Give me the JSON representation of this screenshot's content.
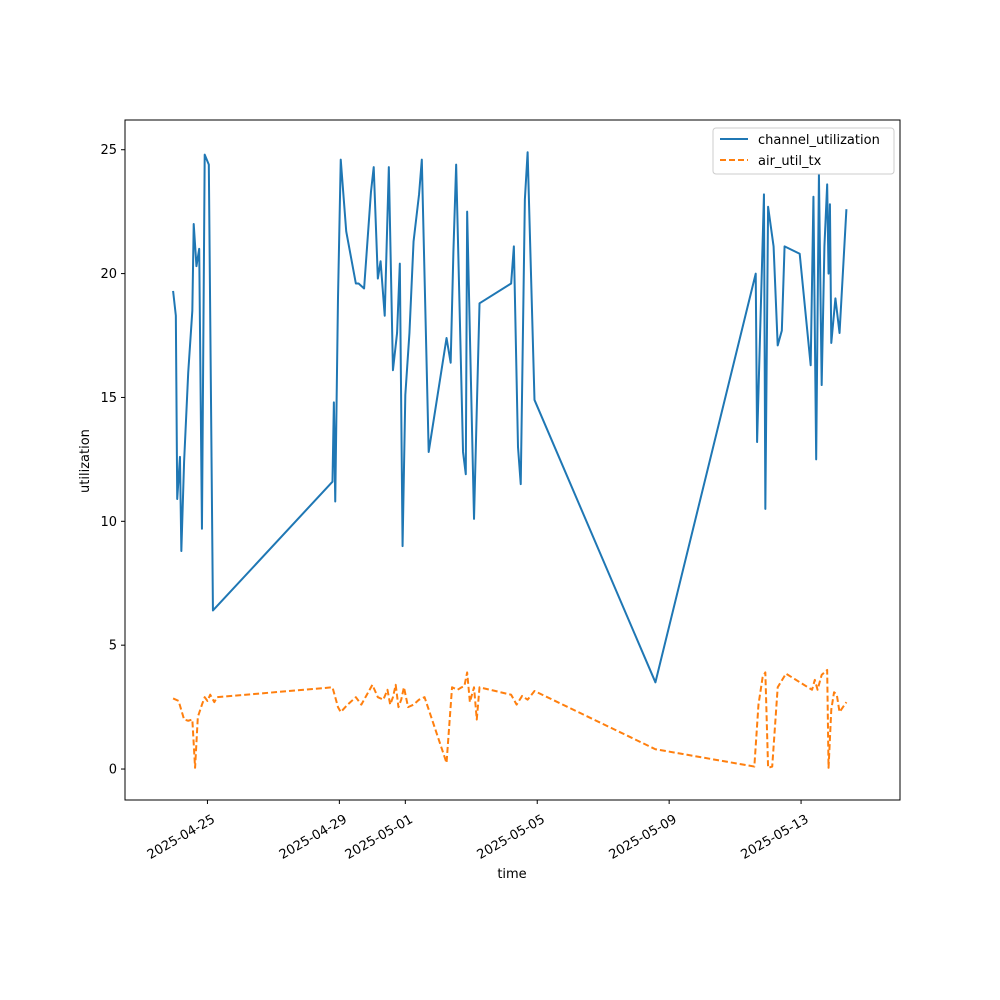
{
  "chart_data": {
    "type": "line",
    "xlabel": "time",
    "ylabel": "utilization",
    "xlim": [
      "2025-04-22T12:00",
      "2025-05-16T00:00"
    ],
    "ylim": [
      -1.25,
      26.2
    ],
    "x_ticks": [
      "2025-04-25",
      "2025-04-29",
      "2025-05-01",
      "2025-05-05",
      "2025-05-09",
      "2025-05-13"
    ],
    "y_ticks": [
      0,
      5,
      10,
      15,
      20,
      25
    ],
    "grid": false,
    "legend_position": "top-right",
    "series": [
      {
        "name": "channel_utilization",
        "color": "#1f77b4",
        "style": "solid",
        "points": [
          [
            "2025-04-23T23:00",
            19.3
          ],
          [
            "2025-04-24T01:00",
            18.3
          ],
          [
            "2025-04-24T02:00",
            10.9
          ],
          [
            "2025-04-24T04:00",
            12.6
          ],
          [
            "2025-04-24T05:00",
            8.8
          ],
          [
            "2025-04-24T07:00",
            12.4
          ],
          [
            "2025-04-24T10:00",
            16.0
          ],
          [
            "2025-04-24T13:00",
            18.5
          ],
          [
            "2025-04-24T14:00",
            22.0
          ],
          [
            "2025-04-24T16:00",
            20.3
          ],
          [
            "2025-04-24T18:00",
            21.0
          ],
          [
            "2025-04-24T20:00",
            9.7
          ],
          [
            "2025-04-24T22:00",
            24.8
          ],
          [
            "2025-04-25T01:00",
            24.4
          ],
          [
            "2025-04-25T04:00",
            6.4
          ],
          [
            "2025-04-28T19:00",
            11.6
          ],
          [
            "2025-04-28T20:00",
            14.8
          ],
          [
            "2025-04-28T21:00",
            10.8
          ],
          [
            "2025-04-28T23:00",
            19.0
          ],
          [
            "2025-04-29T01:00",
            24.6
          ],
          [
            "2025-04-29T05:00",
            21.7
          ],
          [
            "2025-04-29T12:00",
            19.6
          ],
          [
            "2025-04-29T14:00",
            19.6
          ],
          [
            "2025-04-29T18:00",
            19.4
          ],
          [
            "2025-04-29T23:00",
            23.3
          ],
          [
            "2025-04-30T01:00",
            24.3
          ],
          [
            "2025-04-30T04:00",
            19.8
          ],
          [
            "2025-04-30T06:00",
            20.5
          ],
          [
            "2025-04-30T09:00",
            18.3
          ],
          [
            "2025-04-30T12:00",
            24.3
          ],
          [
            "2025-04-30T15:00",
            16.1
          ],
          [
            "2025-04-30T18:00",
            17.6
          ],
          [
            "2025-04-30T20:00",
            20.4
          ],
          [
            "2025-04-30T22:00",
            9.0
          ],
          [
            "2025-05-01T00:00",
            15.1
          ],
          [
            "2025-05-01T03:00",
            17.6
          ],
          [
            "2025-05-01T06:00",
            21.3
          ],
          [
            "2025-05-01T10:00",
            23.2
          ],
          [
            "2025-05-01T12:00",
            24.6
          ],
          [
            "2025-05-01T17:00",
            12.8
          ],
          [
            "2025-05-02T06:00",
            17.4
          ],
          [
            "2025-05-02T09:00",
            16.4
          ],
          [
            "2025-05-02T11:00",
            20.9
          ],
          [
            "2025-05-02T13:00",
            24.4
          ],
          [
            "2025-05-02T18:00",
            12.8
          ],
          [
            "2025-05-02T20:00",
            11.9
          ],
          [
            "2025-05-02T21:00",
            22.5
          ],
          [
            "2025-05-03T02:00",
            10.1
          ],
          [
            "2025-05-03T04:00",
            14.5
          ],
          [
            "2025-05-03T06:00",
            18.8
          ],
          [
            "2025-05-04T05:00",
            19.6
          ],
          [
            "2025-05-04T07:00",
            21.1
          ],
          [
            "2025-05-04T10:00",
            13.0
          ],
          [
            "2025-05-04T12:00",
            11.5
          ],
          [
            "2025-05-04T15:00",
            23.0
          ],
          [
            "2025-05-04T17:00",
            24.9
          ],
          [
            "2025-05-04T22:00",
            14.9
          ],
          [
            "2025-05-08T14:00",
            3.5
          ],
          [
            "2025-05-11T15:00",
            20.0
          ],
          [
            "2025-05-11T16:00",
            13.2
          ],
          [
            "2025-05-11T21:00",
            23.2
          ],
          [
            "2025-05-11T22:00",
            10.5
          ],
          [
            "2025-05-12T00:00",
            22.7
          ],
          [
            "2025-05-12T04:00",
            21.1
          ],
          [
            "2025-05-12T07:00",
            17.1
          ],
          [
            "2025-05-12T10:00",
            17.7
          ],
          [
            "2025-05-12T12:00",
            21.1
          ],
          [
            "2025-05-12T23:00",
            20.8
          ],
          [
            "2025-05-13T07:00",
            16.3
          ],
          [
            "2025-05-13T09:00",
            23.1
          ],
          [
            "2025-05-13T11:00",
            12.5
          ],
          [
            "2025-05-13T13:00",
            24.0
          ],
          [
            "2025-05-13T15:00",
            15.5
          ],
          [
            "2025-05-13T17:00",
            21.1
          ],
          [
            "2025-05-13T19:00",
            23.6
          ],
          [
            "2025-05-13T20:00",
            20.0
          ],
          [
            "2025-05-13T21:00",
            22.8
          ],
          [
            "2025-05-13T22:00",
            17.2
          ],
          [
            "2025-05-14T01:00",
            19.0
          ],
          [
            "2025-05-14T04:00",
            17.6
          ],
          [
            "2025-05-14T09:00",
            22.6
          ]
        ]
      },
      {
        "name": "air_util_tx",
        "color": "#ff7f0e",
        "style": "dashed",
        "points": [
          [
            "2025-04-23T23:00",
            2.85
          ],
          [
            "2025-04-24T03:00",
            2.75
          ],
          [
            "2025-04-24T07:00",
            2.0
          ],
          [
            "2025-04-24T10:00",
            1.95
          ],
          [
            "2025-04-24T13:00",
            2.0
          ],
          [
            "2025-04-24T15:00",
            0.05
          ],
          [
            "2025-04-24T17:00",
            2.1
          ],
          [
            "2025-04-24T20:00",
            2.6
          ],
          [
            "2025-04-24T22:00",
            2.9
          ],
          [
            "2025-04-25T00:00",
            2.75
          ],
          [
            "2025-04-25T02:00",
            3.0
          ],
          [
            "2025-04-25T05:00",
            2.7
          ],
          [
            "2025-04-25T07:00",
            2.9
          ],
          [
            "2025-04-28T19:00",
            3.3
          ],
          [
            "2025-04-28T23:00",
            2.5
          ],
          [
            "2025-04-29T01:00",
            2.3
          ],
          [
            "2025-04-29T06:00",
            2.6
          ],
          [
            "2025-04-29T12:00",
            2.9
          ],
          [
            "2025-04-29T16:00",
            2.6
          ],
          [
            "2025-04-29T20:00",
            3.0
          ],
          [
            "2025-04-30T00:00",
            3.4
          ],
          [
            "2025-04-30T04:00",
            2.9
          ],
          [
            "2025-04-30T08:00",
            2.8
          ],
          [
            "2025-04-30T11:00",
            3.2
          ],
          [
            "2025-04-30T13:00",
            2.6
          ],
          [
            "2025-04-30T15:00",
            2.9
          ],
          [
            "2025-04-30T17:00",
            3.4
          ],
          [
            "2025-04-30T19:00",
            2.5
          ],
          [
            "2025-04-30T21:00",
            2.8
          ],
          [
            "2025-04-30T23:00",
            3.3
          ],
          [
            "2025-05-01T02:00",
            2.5
          ],
          [
            "2025-05-01T06:00",
            2.6
          ],
          [
            "2025-05-01T10:00",
            2.8
          ],
          [
            "2025-05-01T14:00",
            2.9
          ],
          [
            "2025-05-02T06:00",
            0.25
          ],
          [
            "2025-05-02T10:00",
            3.3
          ],
          [
            "2025-05-02T14:00",
            3.2
          ],
          [
            "2025-05-02T17:00",
            3.3
          ],
          [
            "2025-05-02T19:00",
            3.35
          ],
          [
            "2025-05-02T21:00",
            3.9
          ],
          [
            "2025-05-02T23:00",
            2.7
          ],
          [
            "2025-05-03T02:00",
            3.3
          ],
          [
            "2025-05-03T04:00",
            2.0
          ],
          [
            "2025-05-03T06:00",
            3.3
          ],
          [
            "2025-05-04T05:00",
            3.0
          ],
          [
            "2025-05-04T09:00",
            2.6
          ],
          [
            "2025-05-04T13:00",
            2.95
          ],
          [
            "2025-05-04T17:00",
            2.8
          ],
          [
            "2025-05-04T22:00",
            3.15
          ],
          [
            "2025-05-08T14:00",
            0.8
          ],
          [
            "2025-05-11T14:00",
            0.1
          ],
          [
            "2025-05-11T17:00",
            2.6
          ],
          [
            "2025-05-11T20:00",
            3.7
          ],
          [
            "2025-05-11T22:00",
            3.9
          ],
          [
            "2025-05-12T00:00",
            0.05
          ],
          [
            "2025-05-12T03:00",
            0.1
          ],
          [
            "2025-05-12T07:00",
            3.3
          ],
          [
            "2025-05-12T13:00",
            3.85
          ],
          [
            "2025-05-13T05:00",
            3.3
          ],
          [
            "2025-05-13T08:00",
            3.2
          ],
          [
            "2025-05-13T10:00",
            3.6
          ],
          [
            "2025-05-13T12:00",
            3.2
          ],
          [
            "2025-05-13T15:00",
            3.8
          ],
          [
            "2025-05-13T19:00",
            4.0
          ],
          [
            "2025-05-13T20:00",
            0.05
          ],
          [
            "2025-05-13T22:00",
            2.4
          ],
          [
            "2025-05-14T00:00",
            3.1
          ],
          [
            "2025-05-14T02:00",
            3.0
          ],
          [
            "2025-05-14T04:00",
            2.3
          ],
          [
            "2025-05-14T09:00",
            2.7
          ]
        ]
      }
    ]
  }
}
